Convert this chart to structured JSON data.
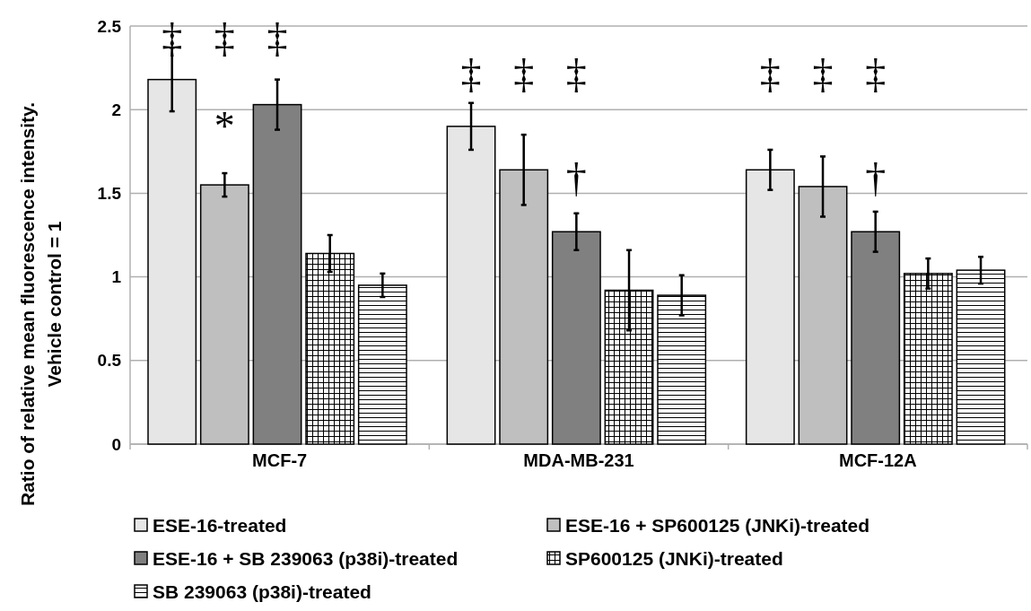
{
  "chart_data": {
    "type": "bar",
    "ylabel": "Ratio of relative mean fluorescence intensity.\nVehicle control = 1",
    "categories": [
      "MCF-7",
      "MDA-MB-231",
      "MCF-12A"
    ],
    "series": [
      {
        "name": "ESE-16-treated",
        "color": "#e6e6e6",
        "values": [
          2.18,
          1.9,
          1.64
        ],
        "errors": [
          0.19,
          0.14,
          0.12
        ]
      },
      {
        "name": "ESE-16 + SP600125 (JNKi)-treated",
        "color": "#bfbfbf",
        "values": [
          1.55,
          1.64,
          1.54
        ],
        "errors": [
          0.07,
          0.21,
          0.18
        ]
      },
      {
        "name": "ESE-16 + SB 239063 (p38i)-treated",
        "color": "#808080",
        "values": [
          2.03,
          1.27,
          1.27
        ],
        "errors": [
          0.15,
          0.11,
          0.12
        ]
      },
      {
        "name": "SP600125 (JNKi)-treated",
        "color": "#000000",
        "values": [
          1.14,
          0.92,
          1.02
        ],
        "errors": [
          0.11,
          0.24,
          0.09
        ]
      },
      {
        "name": "SB 239063 (p38i)-treated",
        "color": "#000000",
        "values": [
          0.95,
          0.89,
          1.04
        ],
        "errors": [
          0.07,
          0.12,
          0.08
        ]
      }
    ],
    "ylim": [
      0,
      2.5
    ],
    "yticks": [
      0,
      0.5,
      1,
      1.5,
      2,
      2.5
    ],
    "grid": "y",
    "legend": "bottom",
    "annotations": [
      "‡",
      "‡",
      "‡",
      "*",
      "‡",
      "‡",
      "‡",
      "†",
      "‡",
      "‡",
      "‡",
      "†"
    ]
  }
}
